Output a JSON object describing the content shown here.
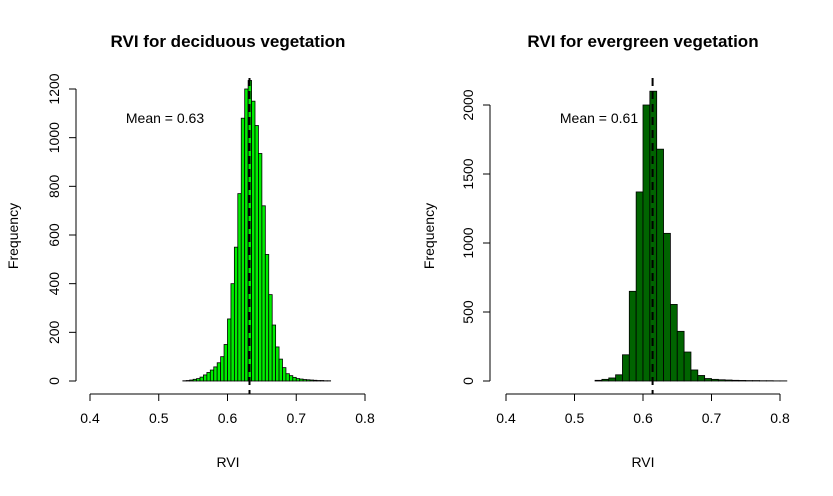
{
  "chart_data": [
    {
      "type": "bar",
      "title": "RVI for deciduous vegetation",
      "xlabel": "RVI",
      "ylabel": "Frequency",
      "annotation": "Mean = 0.63",
      "mean": 0.632,
      "bar_color": "#00ee00",
      "xlim": [
        0.4,
        0.8
      ],
      "ylim": [
        0,
        1200
      ],
      "x_ticks": [
        "0.4",
        "0.5",
        "0.6",
        "0.7",
        "0.8"
      ],
      "x_tick_values": [
        0.4,
        0.5,
        0.6,
        0.7,
        0.8
      ],
      "y_ticks": [
        "0",
        "200",
        "400",
        "600",
        "800",
        "1000",
        "1200"
      ],
      "y_tick_values": [
        0,
        200,
        400,
        600,
        800,
        1000,
        1200
      ],
      "bin_width": 0.005,
      "bin_starts": [
        0.535,
        0.54,
        0.545,
        0.55,
        0.555,
        0.56,
        0.565,
        0.57,
        0.575,
        0.58,
        0.585,
        0.59,
        0.595,
        0.6,
        0.605,
        0.61,
        0.615,
        0.62,
        0.625,
        0.63,
        0.635,
        0.64,
        0.645,
        0.65,
        0.655,
        0.66,
        0.665,
        0.67,
        0.675,
        0.68,
        0.685,
        0.69,
        0.695,
        0.7,
        0.705,
        0.71,
        0.715,
        0.72,
        0.725,
        0.73,
        0.735,
        0.74,
        0.745
      ],
      "values": [
        1,
        2,
        4,
        7,
        10,
        16,
        25,
        35,
        45,
        58,
        75,
        100,
        150,
        255,
        400,
        550,
        770,
        1080,
        1200,
        1235,
        1150,
        1050,
        935,
        720,
        520,
        355,
        230,
        140,
        90,
        55,
        30,
        22,
        15,
        10,
        8,
        6,
        5,
        4,
        3,
        2,
        2,
        1,
        1
      ]
    },
    {
      "type": "bar",
      "title": "RVI for evergreen vegetation",
      "xlabel": "RVI",
      "ylabel": "Frequency",
      "annotation": "Mean = 0.61",
      "mean": 0.614,
      "bar_color": "#006400",
      "xlim": [
        0.4,
        0.8
      ],
      "ylim": [
        0,
        2000
      ],
      "x_ticks": [
        "0.4",
        "0.5",
        "0.6",
        "0.7",
        "0.8"
      ],
      "x_tick_values": [
        0.4,
        0.5,
        0.6,
        0.7,
        0.8
      ],
      "y_ticks": [
        "0",
        "500",
        "1000",
        "1500",
        "2000"
      ],
      "y_tick_values": [
        0,
        500,
        1000,
        1500,
        2000
      ],
      "bin_width": 0.01,
      "bin_starts": [
        0.53,
        0.54,
        0.55,
        0.56,
        0.57,
        0.58,
        0.59,
        0.6,
        0.61,
        0.62,
        0.63,
        0.64,
        0.65,
        0.66,
        0.67,
        0.68,
        0.69,
        0.7,
        0.71,
        0.72,
        0.73,
        0.74,
        0.75,
        0.76,
        0.77,
        0.78,
        0.79,
        0.8
      ],
      "values": [
        5,
        12,
        22,
        45,
        190,
        650,
        1370,
        2000,
        2100,
        1680,
        1070,
        555,
        360,
        210,
        80,
        40,
        18,
        12,
        9,
        7,
        5,
        4,
        3,
        3,
        2,
        2,
        1,
        1
      ]
    }
  ]
}
